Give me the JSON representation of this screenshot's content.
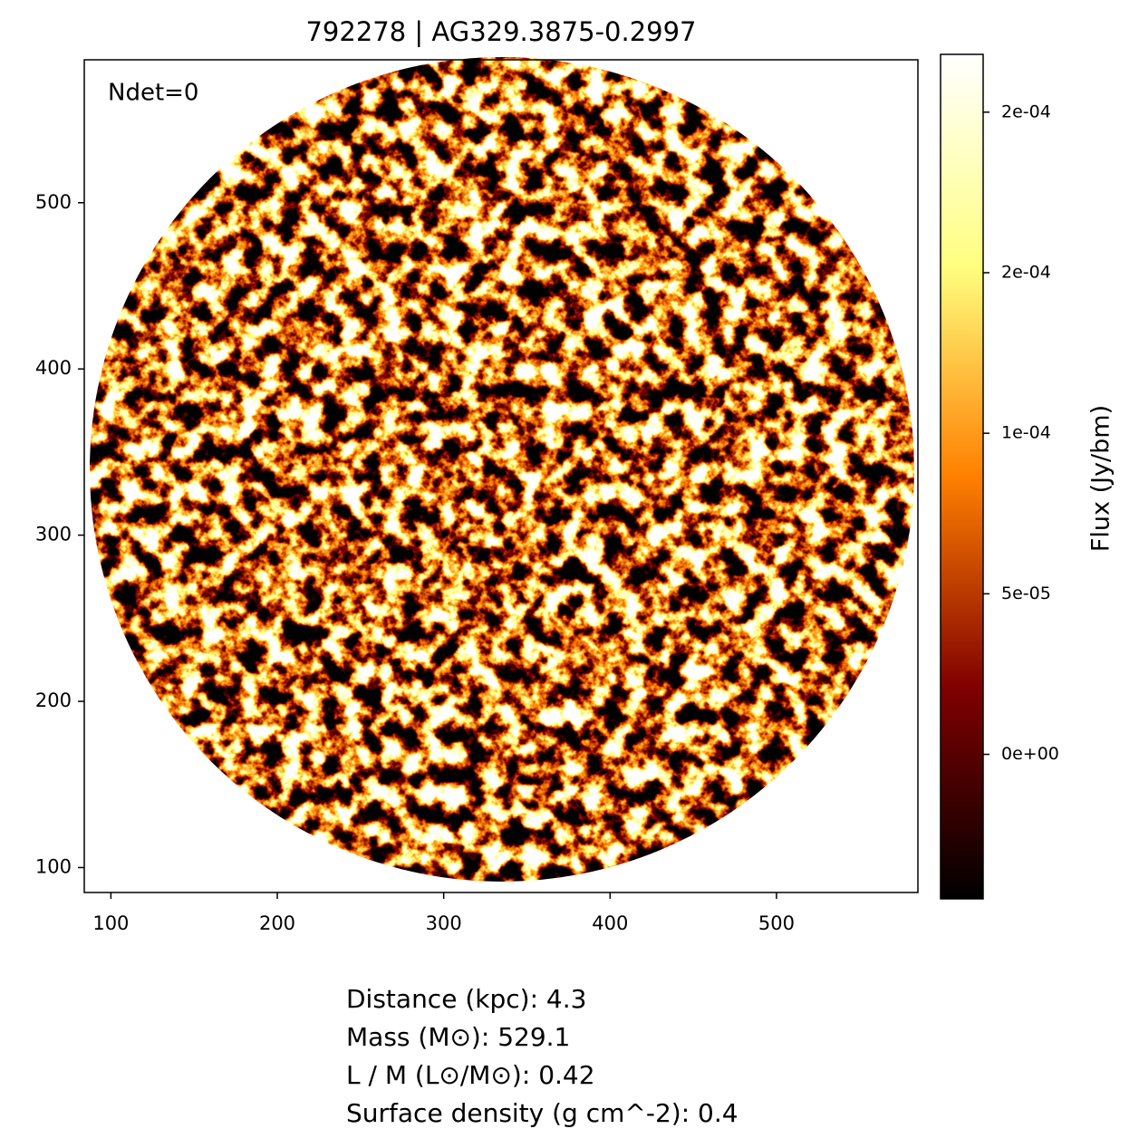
{
  "chart_data": {
    "type": "image",
    "title": "792278 | AG329.3875-0.2997",
    "annotation": "Ndet=0",
    "xlim": [
      84,
      585
    ],
    "xticks": [
      100,
      200,
      300,
      400,
      500
    ],
    "ylim": [
      85,
      586
    ],
    "yticks": [
      100,
      200,
      300,
      400,
      500
    ],
    "colormap": "afmhot",
    "colorbar_label": "Flux (Jy/bm)",
    "clim": [
      -4.5e-05,
      0.000218
    ],
    "cticks": [
      {
        "value": 0,
        "label": "0e+00"
      },
      {
        "value": 5e-05,
        "label": "5e-05"
      },
      {
        "value": 0.0001,
        "label": "1e-04"
      },
      {
        "value": 0.00015,
        "label": "2e-04"
      },
      {
        "value": 0.0002,
        "label": "2e-04"
      }
    ],
    "info_lines": [
      "Distance (kpc): 4.3",
      "Mass (M⊙): 529.1",
      "L / M (L⊙/M⊙): 0.42",
      "Surface density (g cm^-2): 0.4"
    ]
  }
}
